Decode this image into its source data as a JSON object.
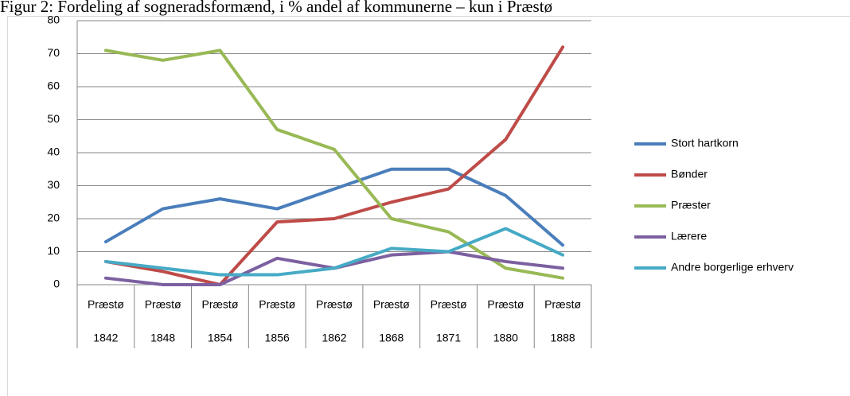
{
  "chart_data": {
    "type": "line",
    "title": "Figur 2: Fordeling af sogneradsformænd, i % andel af kommunerne – kun i Præstø",
    "categories": [
      [
        "Præstø",
        "1842"
      ],
      [
        "Præstø",
        "1848"
      ],
      [
        "Præstø",
        "1854"
      ],
      [
        "Præstø",
        "1856"
      ],
      [
        "Præstø",
        "1862"
      ],
      [
        "Præstø",
        "1868"
      ],
      [
        "Præstø",
        "1871"
      ],
      [
        "Præstø",
        "1880"
      ],
      [
        "Præstø",
        "1888"
      ]
    ],
    "series": [
      {
        "name": "Stort hartkorn",
        "color": "#4a7ebb",
        "values": [
          13,
          23,
          26,
          23,
          29,
          35,
          35,
          27,
          12
        ]
      },
      {
        "name": "Bønder",
        "color": "#be4b48",
        "values": [
          7,
          4,
          0,
          19,
          20,
          25,
          29,
          44,
          72
        ]
      },
      {
        "name": "Præster",
        "color": "#98b954",
        "values": [
          71,
          68,
          71,
          47,
          41,
          20,
          16,
          5,
          2
        ]
      },
      {
        "name": "Lærere",
        "color": "#7d60a0",
        "values": [
          2,
          0,
          0,
          8,
          5,
          9,
          10,
          7,
          5
        ]
      },
      {
        "name": "Andre borgerlige erhverv",
        "color": "#46aac5",
        "values": [
          7,
          5,
          3,
          3,
          5,
          11,
          10,
          17,
          9
        ]
      }
    ],
    "ylim": [
      0,
      80
    ],
    "yticks": [
      0,
      10,
      20,
      30,
      40,
      50,
      60,
      70,
      80
    ],
    "grid": true,
    "legend": "right"
  }
}
